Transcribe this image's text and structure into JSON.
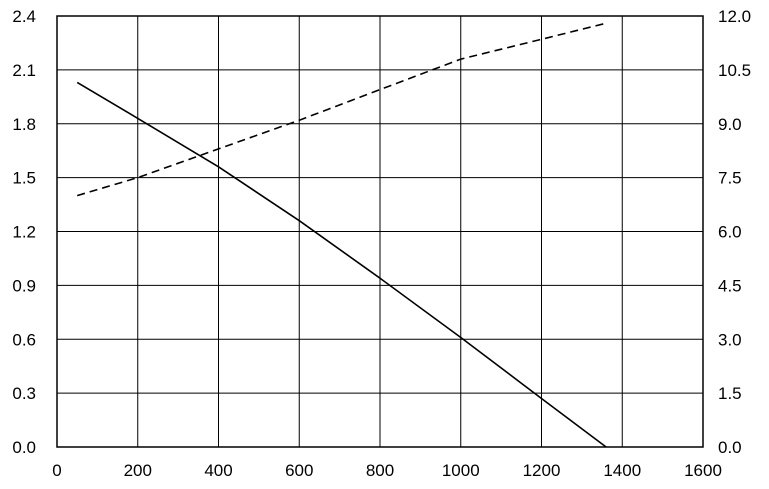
{
  "chart_data": {
    "type": "line",
    "title": "",
    "xlabel": "",
    "ylabel": "",
    "y2label": "",
    "xlim": [
      0,
      1600
    ],
    "ylim": [
      0,
      2.4
    ],
    "y2lim": [
      0,
      12
    ],
    "grid": true,
    "x_ticks": [
      "0",
      "200",
      "400",
      "600",
      "800",
      "1000",
      "1200",
      "1400",
      "1600"
    ],
    "y_ticks": [
      "0.0",
      "0.3",
      "0.6",
      "0.9",
      "1.2",
      "1.5",
      "1.8",
      "2.1",
      "2.4"
    ],
    "y2_ticks": [
      "0.0",
      "1.5",
      "3.0",
      "4.5",
      "6.0",
      "7.5",
      "9.0",
      "10.5",
      "12.0"
    ],
    "series": [
      {
        "style": "solid",
        "axis": "left",
        "color": "#000000",
        "points": [
          [
            50,
            2.03
          ],
          [
            200,
            1.83
          ],
          [
            400,
            1.56
          ],
          [
            600,
            1.26
          ],
          [
            800,
            0.94
          ],
          [
            1000,
            0.61
          ],
          [
            1200,
            0.27
          ],
          [
            1360,
            0.0
          ]
        ]
      },
      {
        "style": "dashed",
        "axis": "right",
        "color": "#000000",
        "points": [
          [
            50,
            7.0
          ],
          [
            200,
            7.5
          ],
          [
            400,
            8.3
          ],
          [
            600,
            9.1
          ],
          [
            800,
            9.95
          ],
          [
            1000,
            10.8
          ],
          [
            1200,
            11.35
          ],
          [
            1360,
            11.8
          ]
        ]
      }
    ]
  }
}
